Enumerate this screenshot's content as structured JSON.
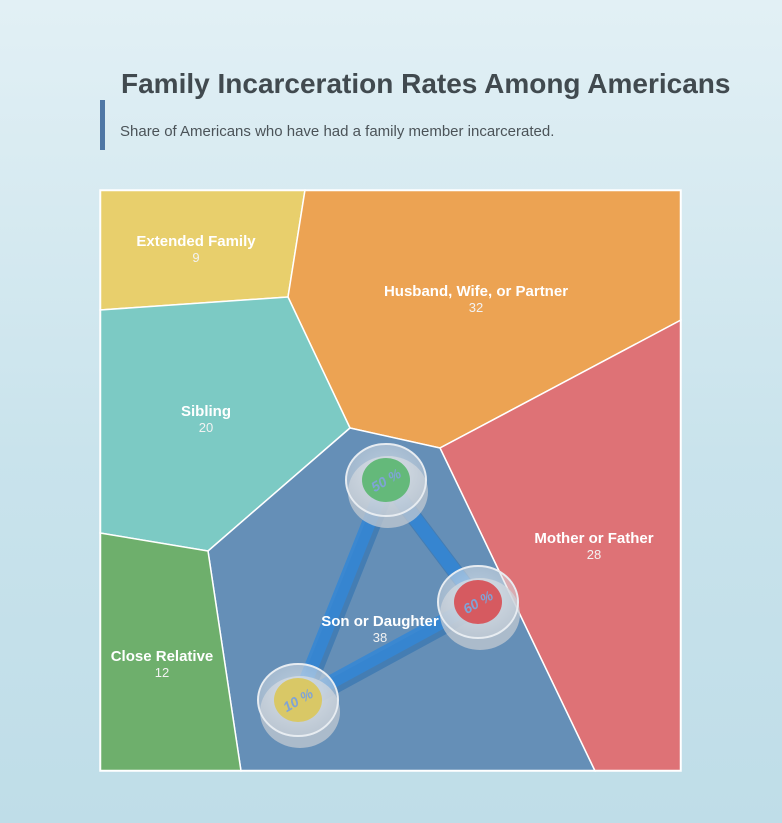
{
  "header": {
    "title": "Family Incarceration Rates Among Americans",
    "subtitle": "Share of Americans who have had a family member incarcerated."
  },
  "chart_data": {
    "type": "voronoi-treemap",
    "title": "Family Incarceration Rates Among Americans",
    "subtitle": "Share of Americans who have had a family member incarcerated.",
    "cells": [
      {
        "label": "Extended Family",
        "value": 9,
        "color": "#e8cf6c"
      },
      {
        "label": "Husband, Wife, or Partner",
        "value": 32,
        "color": "#eca353"
      },
      {
        "label": "Sibling",
        "value": 20,
        "color": "#7ccac4"
      },
      {
        "label": "Mother or Father",
        "value": 28,
        "color": "#de7276"
      },
      {
        "label": "Son or Daughter",
        "value": 38,
        "color": "#658fb7"
      },
      {
        "label": "Close Relative",
        "value": 12,
        "color": "#6eaf6c"
      }
    ],
    "decoration": {
      "type": "triangle-network",
      "nodes": [
        {
          "label": "50 %",
          "color": "#64b97a"
        },
        {
          "label": "60 %",
          "color": "#d65a60"
        },
        {
          "label": "10 %",
          "color": "#d9c866"
        }
      ],
      "edge_color": "#3487d6"
    }
  }
}
